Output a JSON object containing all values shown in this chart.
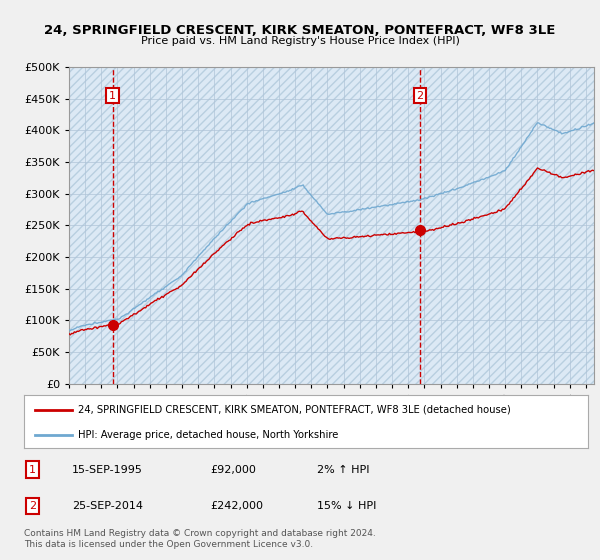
{
  "title": "24, SPRINGFIELD CRESCENT, KIRK SMEATON, PONTEFRACT, WF8 3LE",
  "subtitle": "Price paid vs. HM Land Registry's House Price Index (HPI)",
  "sale1_date_num": 1995.71,
  "sale1_price": 92000,
  "sale1_label": "1",
  "sale1_date_str": "15-SEP-1995",
  "sale1_price_str": "£92,000",
  "sale1_hpi_str": "2% ↑ HPI",
  "sale2_date_num": 2014.73,
  "sale2_price": 242000,
  "sale2_label": "2",
  "sale2_date_str": "25-SEP-2014",
  "sale2_price_str": "£242,000",
  "sale2_hpi_str": "15% ↓ HPI",
  "ylim": [
    0,
    500000
  ],
  "xlim_start": 1993.0,
  "xlim_end": 2025.5,
  "hpi_color": "#6fa8d0",
  "price_color": "#cc0000",
  "legend_label_red": "24, SPRINGFIELD CRESCENT, KIRK SMEATON, PONTEFRACT, WF8 3LE (detached house)",
  "legend_label_blue": "HPI: Average price, detached house, North Yorkshire",
  "footer": "Contains HM Land Registry data © Crown copyright and database right 2024.\nThis data is licensed under the Open Government Licence v3.0.",
  "bg_color": "#f0f0f0",
  "plot_bg_color": "#dce9f5",
  "hatch_bg_color": "#c8d8e8"
}
